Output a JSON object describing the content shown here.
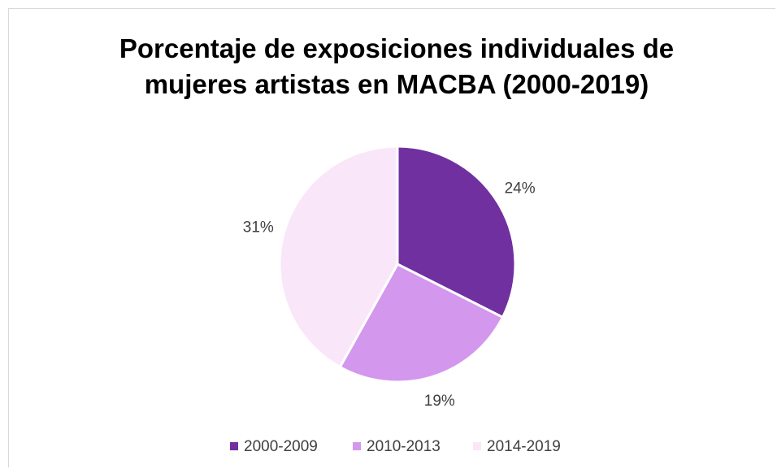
{
  "chart_data": {
    "type": "pie",
    "title": "Porcentaje de exposiciones individuales de mujeres artistas en MACBA (2000-2019)",
    "categories": [
      "2000-2009",
      "2010-2013",
      "2014-2019"
    ],
    "values": [
      24,
      19,
      31
    ],
    "value_labels": [
      "24%",
      "19%",
      "31%"
    ],
    "colors": [
      "#7030a0",
      "#d397ee",
      "#f9e7f9"
    ],
    "legend": "bottom"
  }
}
